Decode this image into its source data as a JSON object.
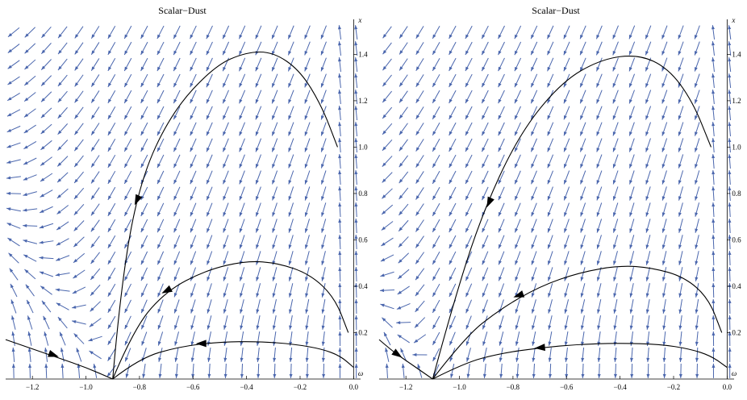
{
  "chart_data": [
    {
      "type": "vector_field",
      "title": "Scalar−Dust",
      "xlabel": "ω",
      "ylabel": "x",
      "xlim": [
        -1.3,
        0.02
      ],
      "ylim": [
        0.0,
        1.53
      ],
      "xticks": [
        -1.2,
        -1.0,
        -0.8,
        -0.6,
        -0.4,
        -0.2,
        0.0
      ],
      "xtick_labels": [
        "−1.2",
        "−1.0",
        "−0.8",
        "−0.6",
        "−0.4",
        "−0.2",
        "0.0"
      ],
      "yticks": [
        0.2,
        0.4,
        0.6,
        0.8,
        1.0,
        1.2,
        1.4
      ],
      "ytick_labels": [
        "0.2",
        "0.4",
        "0.6",
        "0.8",
        "1.0",
        "1.2",
        "1.4"
      ],
      "node": [
        -0.9,
        0.0
      ],
      "vector_color": "#4a66ad",
      "trajectories": [
        {
          "points": [
            [
              -0.9,
              0.0
            ],
            [
              -0.87,
              0.4
            ],
            [
              -0.8,
              0.85
            ],
            [
              -0.68,
              1.15
            ],
            [
              -0.52,
              1.35
            ],
            [
              -0.4,
              1.41
            ],
            [
              -0.3,
              1.41
            ],
            [
              -0.2,
              1.33
            ],
            [
              -0.12,
              1.18
            ],
            [
              -0.06,
              1.0
            ]
          ],
          "arrow_at": [
            -0.81,
            0.77
          ]
        },
        {
          "points": [
            [
              -0.9,
              0.0
            ],
            [
              -0.82,
              0.22
            ],
            [
              -0.7,
              0.38
            ],
            [
              -0.55,
              0.47
            ],
            [
              -0.4,
              0.51
            ],
            [
              -0.28,
              0.5
            ],
            [
              -0.16,
              0.45
            ],
            [
              -0.07,
              0.35
            ],
            [
              -0.02,
              0.2
            ]
          ],
          "arrow_at": [
            -0.7,
            0.38
          ]
        },
        {
          "points": [
            [
              -0.9,
              0.0
            ],
            [
              -0.8,
              0.09
            ],
            [
              -0.65,
              0.14
            ],
            [
              -0.5,
              0.16
            ],
            [
              -0.35,
              0.162
            ],
            [
              -0.22,
              0.15
            ],
            [
              -0.12,
              0.13
            ],
            [
              -0.05,
              0.1
            ],
            [
              0.0,
              0.05
            ]
          ],
          "arrow_at": [
            -0.57,
            0.153
          ]
        },
        {
          "points": [
            [
              -1.3,
              0.17
            ],
            [
              -1.2,
              0.13
            ],
            [
              -1.1,
              0.09
            ],
            [
              -1.0,
              0.05
            ],
            [
              -0.9,
              0.0
            ]
          ],
          "arrow_at": [
            -1.12,
            0.103
          ]
        }
      ]
    },
    {
      "type": "vector_field",
      "title": "Scalar−Dust",
      "xlabel": "ω",
      "ylabel": "x",
      "xlim": [
        -1.3,
        0.02
      ],
      "ylim": [
        0.0,
        1.53
      ],
      "xticks": [
        -1.2,
        -1.0,
        -0.8,
        -0.6,
        -0.4,
        -0.2,
        0.0
      ],
      "xtick_labels": [
        "−1.2",
        "−1.0",
        "−0.8",
        "−0.6",
        "−0.4",
        "−0.2",
        "0.0"
      ],
      "yticks": [
        0.2,
        0.4,
        0.6,
        0.8,
        1.0,
        1.2,
        1.4
      ],
      "ytick_labels": [
        "0.2",
        "0.4",
        "0.6",
        "0.8",
        "1.0",
        "1.2",
        "1.4"
      ],
      "node": [
        -1.1,
        0.0
      ],
      "vector_color": "#4a66ad",
      "trajectories": [
        {
          "points": [
            [
              -1.1,
              0.0
            ],
            [
              -1.03,
              0.3
            ],
            [
              -0.92,
              0.7
            ],
            [
              -0.78,
              1.05
            ],
            [
              -0.62,
              1.28
            ],
            [
              -0.47,
              1.38
            ],
            [
              -0.33,
              1.4
            ],
            [
              -0.22,
              1.34
            ],
            [
              -0.13,
              1.2
            ],
            [
              -0.06,
              1.0
            ]
          ],
          "arrow_at": [
            -0.89,
            0.76
          ]
        },
        {
          "points": [
            [
              -1.1,
              0.0
            ],
            [
              -0.98,
              0.18
            ],
            [
              -0.85,
              0.3
            ],
            [
              -0.7,
              0.4
            ],
            [
              -0.55,
              0.46
            ],
            [
              -0.4,
              0.49
            ],
            [
              -0.28,
              0.48
            ],
            [
              -0.16,
              0.44
            ],
            [
              -0.07,
              0.35
            ],
            [
              -0.02,
              0.2
            ]
          ],
          "arrow_at": [
            -0.78,
            0.36
          ]
        },
        {
          "points": [
            [
              -1.1,
              0.0
            ],
            [
              -0.98,
              0.07
            ],
            [
              -0.85,
              0.11
            ],
            [
              -0.7,
              0.135
            ],
            [
              -0.55,
              0.15
            ],
            [
              -0.4,
              0.155
            ],
            [
              -0.25,
              0.15
            ],
            [
              -0.14,
              0.13
            ],
            [
              -0.06,
              0.1
            ],
            [
              0.0,
              0.05
            ]
          ],
          "arrow_at": [
            -0.7,
            0.135
          ]
        },
        {
          "points": [
            [
              -1.3,
              0.17
            ],
            [
              -1.25,
              0.12
            ],
            [
              -1.2,
              0.08
            ],
            [
              -1.15,
              0.04
            ],
            [
              -1.1,
              0.0
            ]
          ],
          "arrow_at": [
            -1.23,
            0.105
          ]
        }
      ]
    }
  ]
}
